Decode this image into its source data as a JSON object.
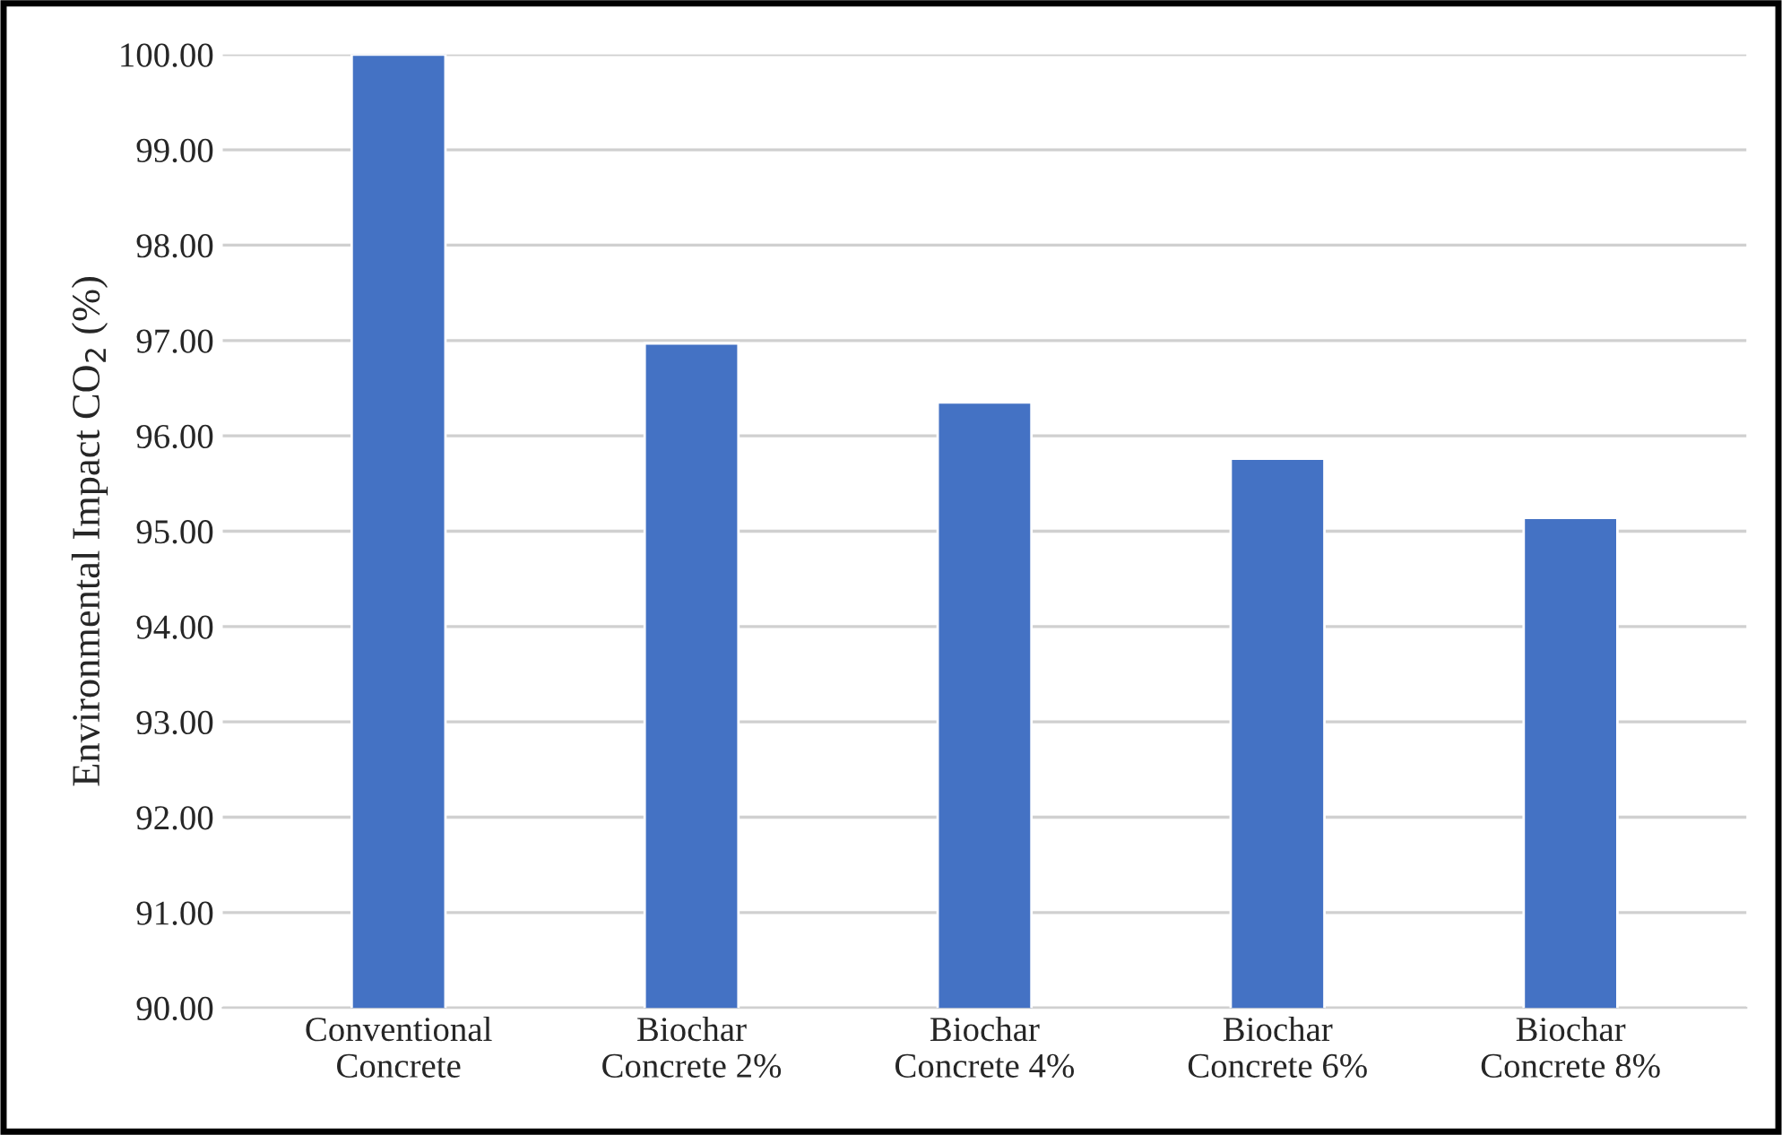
{
  "chart_data": {
    "type": "bar",
    "ylabel": "Environmental Impact CO$_{2}$ (%)",
    "categories": [
      "Conventional\nConcrete",
      "Biochar\nConcrete 2%",
      "Biochar\nConcrete 4%",
      "Biochar\nConcrete 6%",
      "Biochar\nConcrete 8%"
    ],
    "values": [
      100.0,
      96.97,
      96.35,
      95.76,
      95.14
    ],
    "color": "#4472c4",
    "ylim": [
      90,
      100
    ],
    "yticks": [
      {
        "value": 90,
        "label": "90.00"
      },
      {
        "value": 91,
        "label": "91.00"
      },
      {
        "value": 92,
        "label": "92.00"
      },
      {
        "value": 93,
        "label": "93.00"
      },
      {
        "value": 94,
        "label": "94.00"
      },
      {
        "value": 95,
        "label": "95.00"
      },
      {
        "value": 96,
        "label": "96.00"
      },
      {
        "value": 97,
        "label": "97.00"
      },
      {
        "value": 98,
        "label": "98.00"
      },
      {
        "value": 99,
        "label": "99.00"
      },
      {
        "value": 100,
        "label": "100.00"
      }
    ],
    "grid": "y"
  }
}
